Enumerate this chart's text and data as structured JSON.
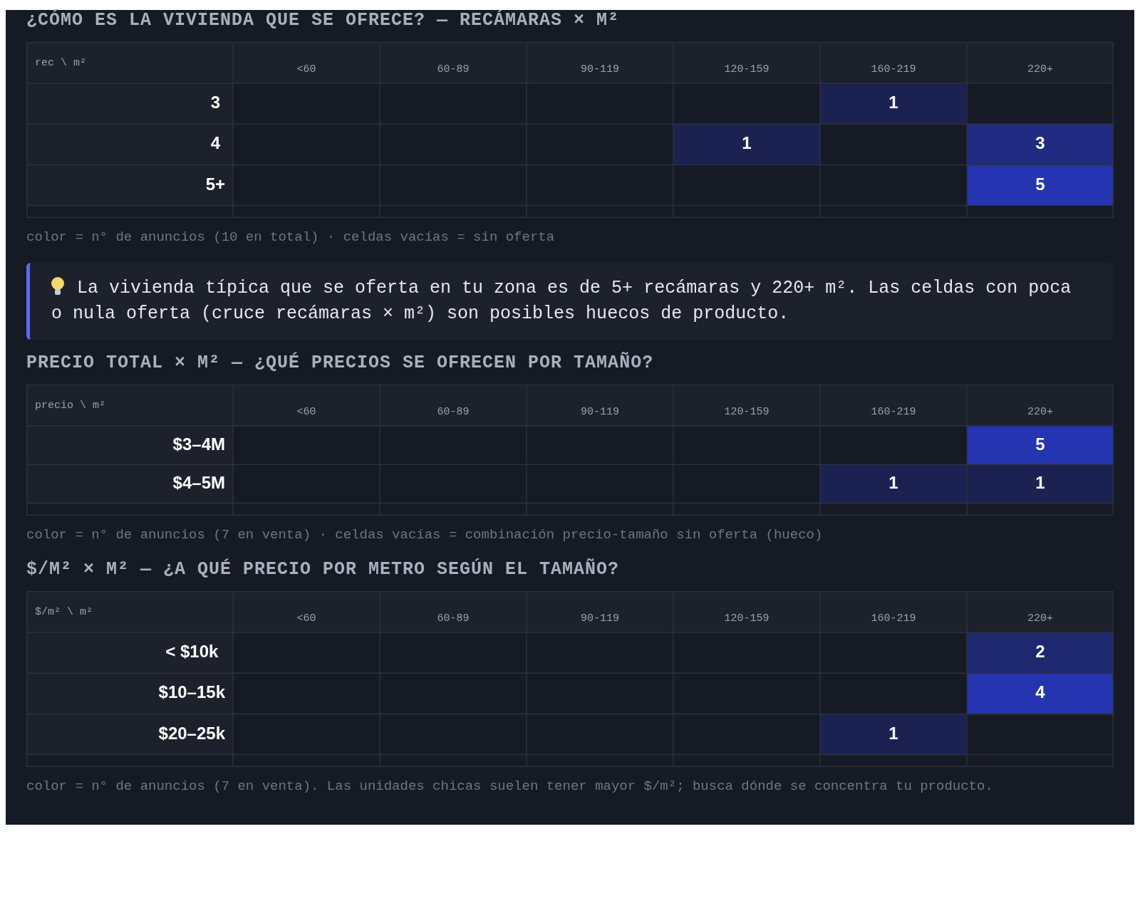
{
  "chart_data": [
    {
      "type": "heatmap",
      "title": "¿CÓMO ES LA VIVIENDA QUE SE OFRECE? — RECÁMARAS × M²",
      "ylabel": "rec \\ m²",
      "categories": [
        "<60",
        "60-89",
        "90-119",
        "120-159",
        "160-219",
        "220+"
      ],
      "y_categories": [
        "3",
        "4",
        "5+"
      ],
      "cells": [
        [
          null,
          null,
          null,
          null,
          1,
          null
        ],
        [
          null,
          null,
          null,
          1,
          null,
          3
        ],
        [
          null,
          null,
          null,
          null,
          null,
          5
        ]
      ],
      "data_labels": true,
      "grid": true,
      "annotations": [
        "color = n° de anuncios (10 en total) · celdas vacías = sin oferta",
        "La vivienda típica que se oferta en tu zona es de 5+ recámaras y 220+ m². Las celdas con poca o nula oferta (cruce recámaras × m²) son posibles huecos de producto."
      ]
    },
    {
      "type": "heatmap",
      "title": "PRECIO TOTAL × M² — ¿QUÉ PRECIOS SE OFRECEN POR TAMAÑO?",
      "ylabel": "precio \\ m²",
      "categories": [
        "<60",
        "60-89",
        "90-119",
        "120-159",
        "160-219",
        "220+"
      ],
      "y_categories": [
        "$3–4M",
        "$4–5M"
      ],
      "cells": [
        [
          null,
          null,
          null,
          null,
          null,
          5
        ],
        [
          null,
          null,
          null,
          null,
          1,
          1
        ]
      ],
      "data_labels": true,
      "grid": true,
      "annotations": [
        "color = n° de anuncios (7 en venta) · celdas vacías = combinación precio-tamaño sin oferta (hueco)"
      ]
    },
    {
      "type": "heatmap",
      "title": "$/M² × M² — ¿A QUÉ PRECIO POR METRO SEGÚN EL TAMAÑO?",
      "ylabel": "$/m² \\ m²",
      "categories": [
        "<60",
        "60-89",
        "90-119",
        "120-159",
        "160-219",
        "220+"
      ],
      "y_categories": [
        "< $10k",
        "$10–15k",
        "$20–25k"
      ],
      "cells": [
        [
          null,
          null,
          null,
          null,
          null,
          2
        ],
        [
          null,
          null,
          null,
          null,
          null,
          4
        ],
        [
          null,
          null,
          null,
          null,
          1,
          null
        ]
      ],
      "data_labels": true,
      "grid": true,
      "annotations": [
        "color = n° de anuncios (7 en venta). Las unidades chicas suelen tener mayor $/m²; busca dónde se concentra tu producto."
      ]
    }
  ]
}
